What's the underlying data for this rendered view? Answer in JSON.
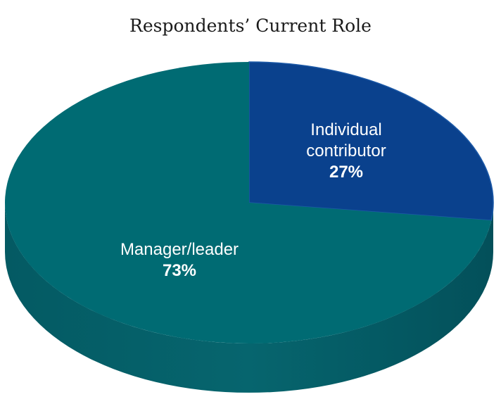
{
  "chart_data": {
    "type": "pie",
    "title": "Respondents’ Current Role",
    "slices": [
      {
        "label_lines": [
          "Manager/leader"
        ],
        "value": 73,
        "value_label": "73%",
        "color": "#006B73",
        "side_color": "#045A63"
      },
      {
        "label_lines": [
          "Individual",
          "contributor"
        ],
        "value": 27,
        "value_label": "27%",
        "color": "#0A418D",
        "side_color": "#083578"
      }
    ],
    "style": "3d"
  }
}
